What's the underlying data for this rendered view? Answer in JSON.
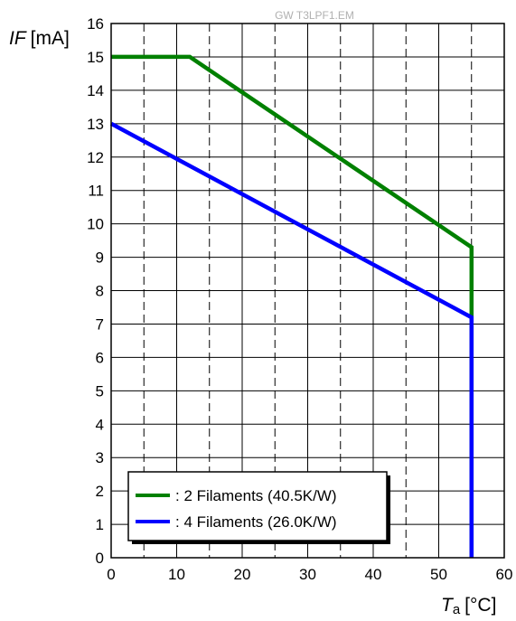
{
  "watermark": "GW T3LPF1.EM",
  "chart_data": {
    "type": "line",
    "ylabel_italic": "IF",
    "ylabel_unit": "[mA]",
    "xlabel_italic": "T",
    "xlabel_sub": "a",
    "xlabel_unit": "[°C]",
    "xlim": [
      0,
      60
    ],
    "ylim": [
      0,
      16
    ],
    "xticks": [
      "0",
      "10",
      "20",
      "30",
      "40",
      "50",
      "60"
    ],
    "yticks": [
      "0",
      "1",
      "2",
      "3",
      "4",
      "5",
      "6",
      "7",
      "8",
      "9",
      "10",
      "11",
      "12",
      "13",
      "14",
      "15",
      "16"
    ],
    "grid": true,
    "legend_position": "bottom-left",
    "series": [
      {
        "name": ": 2 Filaments (40.5K/W)",
        "color": "#008000",
        "points": [
          [
            0,
            15
          ],
          [
            12,
            15
          ],
          [
            55,
            9.3
          ],
          [
            55,
            0
          ]
        ]
      },
      {
        "name": ": 4 Filaments (26.0K/W)",
        "color": "#0000ff",
        "points": [
          [
            0,
            13
          ],
          [
            55,
            7.2
          ],
          [
            55,
            0
          ]
        ]
      }
    ]
  }
}
